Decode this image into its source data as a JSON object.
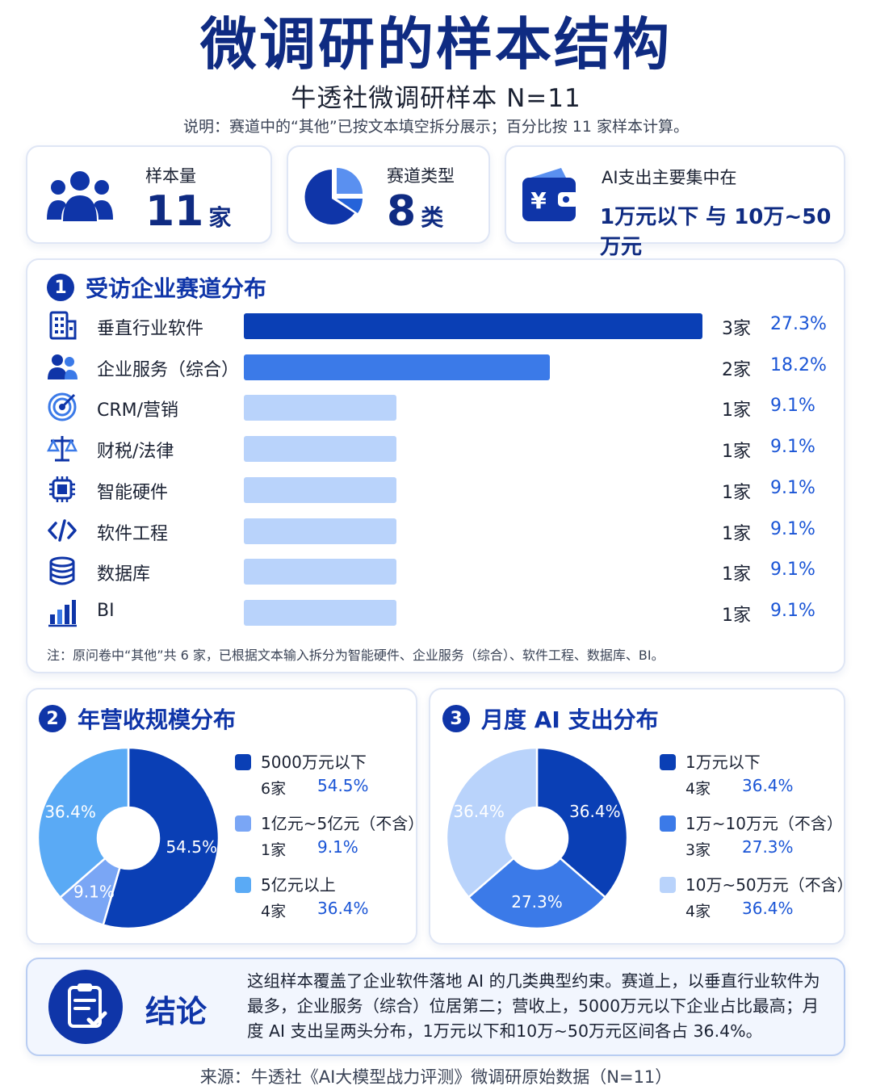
{
  "header": {
    "title": "微调研的样本结构",
    "subtitle": "牛透社微调研样本 N=11",
    "note": "说明：赛道中的“其他”已按文本填空拆分展示；百分比按 11 家样本计算。"
  },
  "stats": {
    "sample": {
      "label": "样本量",
      "value": "11",
      "unit": "家",
      "icon": "people-icon"
    },
    "tracks": {
      "label": "赛道类型",
      "value": "8",
      "unit": "类",
      "icon": "pie-icon"
    },
    "spend": {
      "label": "AI支出主要集中在",
      "value": "1万元以下 与 10万~50万元",
      "icon": "wallet-icon"
    }
  },
  "section1": {
    "number": "1",
    "title": "受访企业赛道分布",
    "footnote": "注：原问卷中“其他”共 6 家，已根据文本输入拆分为智能硬件、企业服务（综合）、软件工程、数据库、BI。"
  },
  "section2": {
    "number": "2",
    "title": "年营收规模分布"
  },
  "section3": {
    "number": "3",
    "title": "月度 AI 支出分布"
  },
  "chart_data": [
    {
      "type": "bar",
      "title": "受访企业赛道分布",
      "categories": [
        "垂直行业软件",
        "企业服务（综合）",
        "CRM/营销",
        "财税/法律",
        "智能硬件",
        "软件工程",
        "数据库",
        "BI"
      ],
      "values": [
        3,
        2,
        1,
        1,
        1,
        1,
        1,
        1
      ],
      "count_labels": [
        "3家",
        "2家",
        "1家",
        "1家",
        "1家",
        "1家",
        "1家",
        "1家"
      ],
      "percent_labels": [
        "27.3%",
        "18.2%",
        "9.1%",
        "9.1%",
        "9.1%",
        "9.1%",
        "9.1%",
        "9.1%"
      ],
      "icons": [
        "building-icon",
        "people-icon",
        "target-icon",
        "scale-icon",
        "chip-icon",
        "code-icon",
        "database-icon",
        "bar-chart-icon"
      ],
      "colors": [
        "#0a3fb5",
        "#3b7ae8",
        "#b9d3fb",
        "#b9d3fb",
        "#b9d3fb",
        "#b9d3fb",
        "#b9d3fb",
        "#b9d3fb"
      ],
      "xlim": [
        0,
        3
      ]
    },
    {
      "type": "pie",
      "title": "年营收规模分布",
      "categories": [
        "5000万元以下",
        "1亿元~5亿元（不含）",
        "5亿元以上"
      ],
      "values": [
        54.5,
        9.1,
        36.4
      ],
      "counts": [
        "6家",
        "1家",
        "4家"
      ],
      "labels": [
        "54.5%",
        "9.1%",
        "36.4%"
      ],
      "colors": [
        "#0a3fb5",
        "#7aa6f5",
        "#5aaaf5"
      ]
    },
    {
      "type": "pie",
      "title": "月度 AI 支出分布",
      "categories": [
        "1万元以下",
        "1万~10万元（不含）",
        "10万~50万元（不含）"
      ],
      "values": [
        36.4,
        27.3,
        36.4
      ],
      "counts": [
        "4家",
        "3家",
        "4家"
      ],
      "labels": [
        "36.4%",
        "27.3%",
        "36.4%"
      ],
      "colors": [
        "#0a3fb5",
        "#3b7ae8",
        "#b9d3fb"
      ]
    }
  ],
  "conclusion": {
    "title": "结论",
    "text": "这组样本覆盖了企业软件落地 AI 的几类典型约束。赛道上，以垂直行业软件为最多，企业服务（综合）位居第二；营收上，5000万元以下企业占比最高；月度 AI 支出呈两头分布，1万元以下和10万~50万元区间各占 36.4%。",
    "icon": "clipboard-check-icon"
  },
  "source": "来源：牛透社《AI大模型战力评测》微调研原始数据（N=11）"
}
